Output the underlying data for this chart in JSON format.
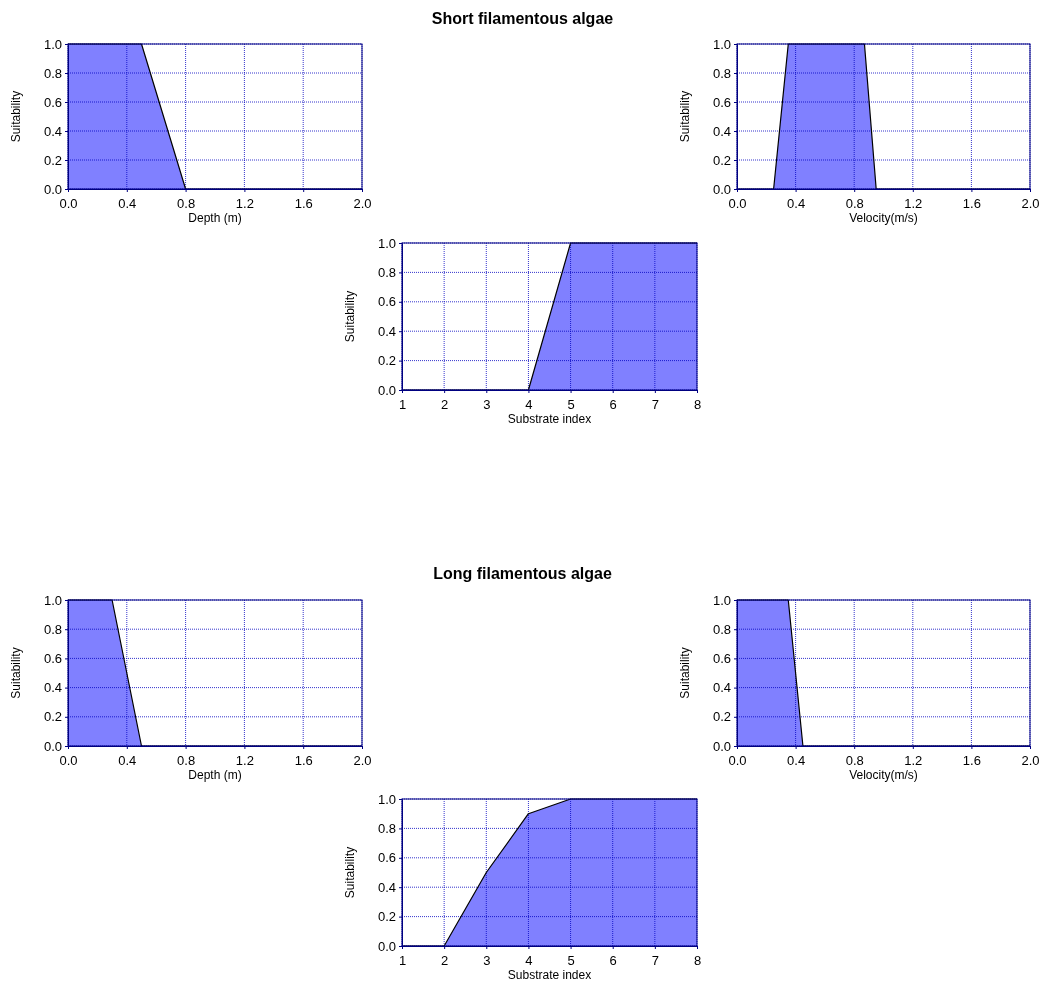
{
  "chart_data": [
    {
      "type": "other",
      "title": "Short filamentous algae"
    },
    {
      "type": "area",
      "xlabel": "Depth (m)",
      "ylabel": "Suitability",
      "x": [
        0,
        0.5,
        0.8,
        2
      ],
      "values": [
        1,
        1,
        0,
        0
      ],
      "color": "#8080ff",
      "xlim": [
        0,
        2
      ],
      "xticks": [
        {
          "value": 0,
          "label": "0.0"
        },
        {
          "value": 0.4,
          "label": "0.4"
        },
        {
          "value": 0.8,
          "label": "0.8"
        },
        {
          "value": 1.2,
          "label": "1.2"
        },
        {
          "value": 1.6,
          "label": "1.6"
        },
        {
          "value": 2,
          "label": "2.0"
        }
      ],
      "ylim": [
        0,
        1
      ],
      "yticks": [
        {
          "value": 0,
          "label": "0.0"
        },
        {
          "value": 0.2,
          "label": "0.2"
        },
        {
          "value": 0.4,
          "label": "0.4"
        },
        {
          "value": 0.6,
          "label": "0.6"
        },
        {
          "value": 0.8,
          "label": "0.8"
        },
        {
          "value": 1,
          "label": "1.0"
        }
      ],
      "grid": true
    },
    {
      "type": "area",
      "xlabel": "Velocity(m/s)",
      "ylabel": "Suitability",
      "x": [
        0,
        0.25,
        0.35,
        0.87,
        0.95,
        2
      ],
      "values": [
        0,
        0,
        1,
        1,
        0,
        0
      ],
      "color": "#8080ff",
      "xlim": [
        0,
        2
      ],
      "xticks": [
        {
          "value": 0,
          "label": "0.0"
        },
        {
          "value": 0.4,
          "label": "0.4"
        },
        {
          "value": 0.8,
          "label": "0.8"
        },
        {
          "value": 1.2,
          "label": "1.2"
        },
        {
          "value": 1.6,
          "label": "1.6"
        },
        {
          "value": 2,
          "label": "2.0"
        }
      ],
      "ylim": [
        0,
        1
      ],
      "yticks": [
        {
          "value": 0,
          "label": "0.0"
        },
        {
          "value": 0.2,
          "label": "0.2"
        },
        {
          "value": 0.4,
          "label": "0.4"
        },
        {
          "value": 0.6,
          "label": "0.6"
        },
        {
          "value": 0.8,
          "label": "0.8"
        },
        {
          "value": 1,
          "label": "1.0"
        }
      ],
      "grid": true
    },
    {
      "type": "area",
      "xlabel": "Substrate index",
      "ylabel": "Suitability",
      "x": [
        1,
        4,
        5,
        8
      ],
      "values": [
        0,
        0,
        1,
        1
      ],
      "color": "#8080ff",
      "xlim": [
        1,
        8
      ],
      "xticks": [
        1,
        2,
        3,
        4,
        5,
        6,
        7,
        8
      ],
      "ylim": [
        0,
        1
      ],
      "yticks": [
        {
          "value": 0,
          "label": "0.0"
        },
        {
          "value": 0.2,
          "label": "0.2"
        },
        {
          "value": 0.4,
          "label": "0.4"
        },
        {
          "value": 0.6,
          "label": "0.6"
        },
        {
          "value": 0.8,
          "label": "0.8"
        },
        {
          "value": 1,
          "label": "1.0"
        }
      ],
      "grid": true
    },
    {
      "type": "other",
      "title": "Long filamentous algae"
    },
    {
      "type": "area",
      "xlabel": "Depth (m)",
      "ylabel": "Suitability",
      "x": [
        0,
        0.3,
        0.5,
        2
      ],
      "values": [
        1,
        1,
        0,
        0
      ],
      "color": "#8080ff",
      "xlim": [
        0,
        2
      ],
      "xticks": [
        {
          "value": 0,
          "label": "0.0"
        },
        {
          "value": 0.4,
          "label": "0.4"
        },
        {
          "value": 0.8,
          "label": "0.8"
        },
        {
          "value": 1.2,
          "label": "1.2"
        },
        {
          "value": 1.6,
          "label": "1.6"
        },
        {
          "value": 2,
          "label": "2.0"
        }
      ],
      "ylim": [
        0,
        1
      ],
      "yticks": [
        {
          "value": 0,
          "label": "0.0"
        },
        {
          "value": 0.2,
          "label": "0.2"
        },
        {
          "value": 0.4,
          "label": "0.4"
        },
        {
          "value": 0.6,
          "label": "0.6"
        },
        {
          "value": 0.8,
          "label": "0.8"
        },
        {
          "value": 1,
          "label": "1.0"
        }
      ],
      "grid": true
    },
    {
      "type": "area",
      "xlabel": "Velocity(m/s)",
      "ylabel": "Suitability",
      "x": [
        0,
        0.35,
        0.45,
        2
      ],
      "values": [
        1,
        1,
        0,
        0
      ],
      "color": "#8080ff",
      "xlim": [
        0,
        2
      ],
      "xticks": [
        {
          "value": 0,
          "label": "0.0"
        },
        {
          "value": 0.4,
          "label": "0.4"
        },
        {
          "value": 0.8,
          "label": "0.8"
        },
        {
          "value": 1.2,
          "label": "1.2"
        },
        {
          "value": 1.6,
          "label": "1.6"
        },
        {
          "value": 2,
          "label": "2.0"
        }
      ],
      "ylim": [
        0,
        1
      ],
      "yticks": [
        {
          "value": 0,
          "label": "0.0"
        },
        {
          "value": 0.2,
          "label": "0.2"
        },
        {
          "value": 0.4,
          "label": "0.4"
        },
        {
          "value": 0.6,
          "label": "0.6"
        },
        {
          "value": 0.8,
          "label": "0.8"
        },
        {
          "value": 1,
          "label": "1.0"
        }
      ],
      "grid": true
    },
    {
      "type": "area",
      "xlabel": "Substrate index",
      "ylabel": "Suitability",
      "x": [
        1,
        2,
        3,
        4,
        5,
        8
      ],
      "values": [
        0,
        0,
        0.5,
        0.9,
        1,
        1
      ],
      "color": "#8080ff",
      "xlim": [
        1,
        8
      ],
      "xticks": [
        1,
        2,
        3,
        4,
        5,
        6,
        7,
        8
      ],
      "ylim": [
        0,
        1
      ],
      "yticks": [
        {
          "value": 0,
          "label": "0.0"
        },
        {
          "value": 0.2,
          "label": "0.2"
        },
        {
          "value": 0.4,
          "label": "0.4"
        },
        {
          "value": 0.6,
          "label": "0.6"
        },
        {
          "value": 0.8,
          "label": "0.8"
        },
        {
          "value": 1,
          "label": "1.0"
        }
      ],
      "grid": true
    }
  ]
}
